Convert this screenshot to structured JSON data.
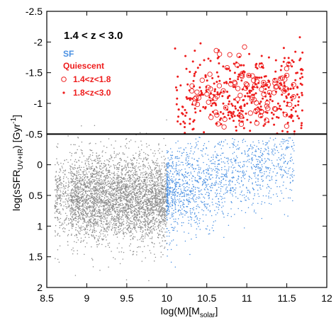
{
  "chart_data": {
    "type": "scatter",
    "title": "",
    "xlabel": "log(M)[M",
    "xlabel_sub": "solar",
    "xlabel_end": "]",
    "ylabel": "log(sSFR",
    "ylabel_sub": "UV+IR",
    "ylabel_end": ") [Gyr",
    "ylabel_sup": "-1",
    "ylabel_close": "]",
    "xlim": [
      8.5,
      12
    ],
    "ylim": [
      2,
      -2.5
    ],
    "y_inverted": true,
    "x_ticks": [
      "8.5",
      "9",
      "9.5",
      "10",
      "10.5",
      "11",
      "11.5",
      "12"
    ],
    "x_tick_values": [
      8.5,
      9,
      9.5,
      10,
      10.5,
      11,
      11.5,
      12
    ],
    "y_ticks": [
      "-2.5",
      "-2",
      "-1.5",
      "-1",
      "-0.5",
      "0",
      "0.5",
      "1",
      "1.5",
      "2"
    ],
    "y_tick_values": [
      -2.5,
      -2,
      -1.5,
      -1,
      -0.5,
      0,
      0.5,
      1,
      1.5,
      2
    ],
    "grid": false,
    "annotation": "1.4 < z < 3.0",
    "divider_y": -0.5,
    "legend_position": "top-left",
    "legend": [
      {
        "label": "SF",
        "color": "#4a90e2",
        "marker": "none"
      },
      {
        "label": "Quiescent",
        "color": "#ee1c1c",
        "marker": "none"
      },
      {
        "label": "1.4<z<1.8",
        "color": "#ee1c1c",
        "marker": "open-circle"
      },
      {
        "label": "1.8<z<3.0",
        "color": "#ee1c1c",
        "marker": "dot"
      }
    ],
    "colors": {
      "low_mass": "#8c8c8c",
      "sf": "#4a90e2",
      "quiescent": "#ee1c1c"
    },
    "series": [
      {
        "name": "",
        "color": "#8c8c8c",
        "count": 4200,
        "x_range": [
          8.6,
          10.0
        ],
        "y_center": 0.55,
        "y_spread": 0.35,
        "y_range": [
          -1.1,
          2.0
        ]
      },
      {
        "name": "SF",
        "color": "#4a90e2",
        "count": 1500,
        "x_range": [
          10.0,
          11.6
        ],
        "y_center": 0.45,
        "y_spread": 0.35,
        "y_range": [
          -0.45,
          1.7
        ]
      },
      {
        "name": "1.8<z<3.0",
        "color": "#ee1c1c",
        "count": 380,
        "marker": "dot",
        "x_range": [
          10.1,
          11.7
        ],
        "y_center": -1.1,
        "y_spread": 0.35,
        "y_range": [
          -2.12,
          -0.5
        ]
      },
      {
        "name": "1.4<z<1.8",
        "color": "#ee1c1c",
        "count": 95,
        "marker": "open-circle",
        "x_range": [
          10.3,
          11.6
        ],
        "y_center": -1.15,
        "y_spread": 0.32,
        "y_range": [
          -2.0,
          -0.55
        ]
      }
    ]
  }
}
